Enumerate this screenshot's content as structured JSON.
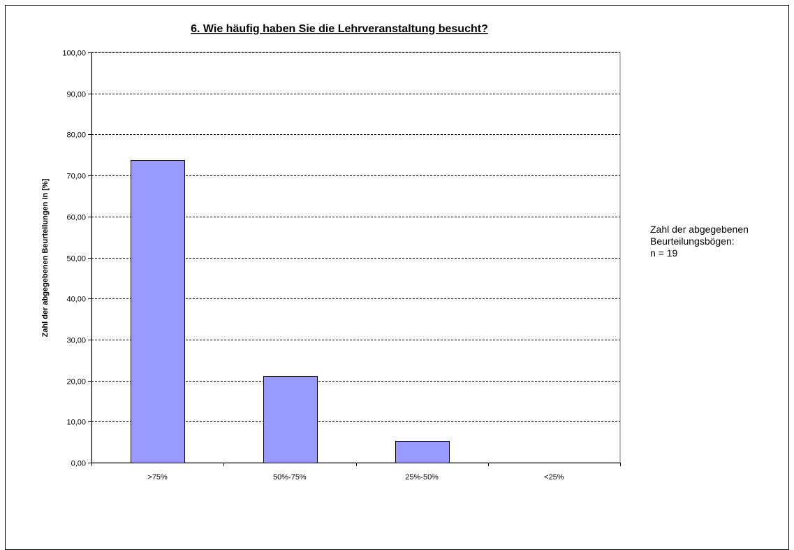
{
  "chart_data": {
    "type": "bar",
    "title": "6. Wie häufig haben Sie die Lehrveranstaltung besucht?",
    "xlabel": "",
    "ylabel": "Zahl der abgegebenen Beurteilungen in [%]",
    "categories": [
      ">75%",
      "50%-75%",
      "25%-50%",
      "<25%"
    ],
    "values": [
      73.68,
      21.05,
      5.26,
      0.0
    ],
    "ylim": [
      0,
      100
    ],
    "yticks": [
      "0,00",
      "10,00",
      "20,00",
      "30,00",
      "40,00",
      "50,00",
      "60,00",
      "70,00",
      "80,00",
      "90,00",
      "100,00"
    ],
    "grid": true,
    "bar_color": "#9999ff",
    "legend": "none"
  },
  "note": {
    "line1": "Zahl der abgegebenen",
    "line2": "Beurteilungsbögen:",
    "line3": "n = 19"
  }
}
